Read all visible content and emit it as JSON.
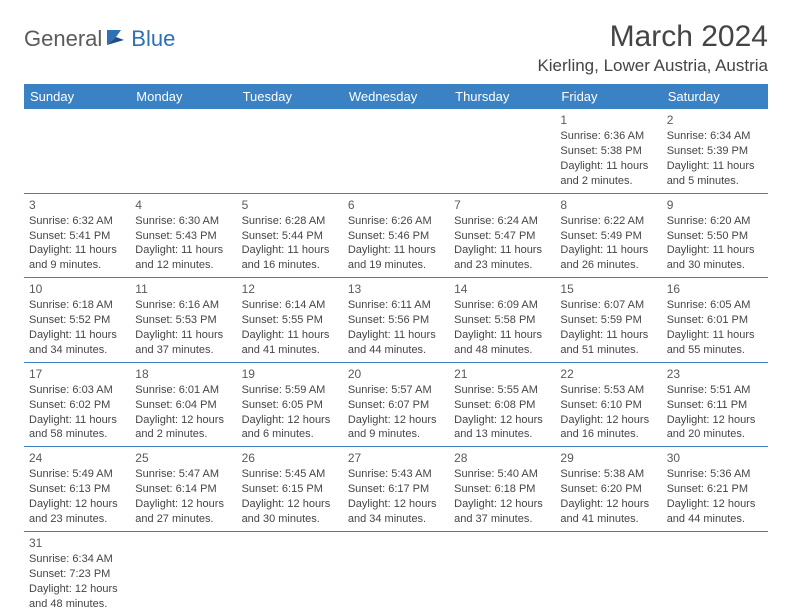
{
  "logo": {
    "general": "General",
    "blue": "Blue"
  },
  "header": {
    "month_title": "March 2024",
    "location": "Kierling, Lower Austria, Austria"
  },
  "colors": {
    "header_bg": "#3a82c4",
    "header_text": "#ffffff",
    "cell_border": "#3a82c4",
    "text": "#454545",
    "logo_gray": "#5b5b5b",
    "logo_blue": "#2f6fb3"
  },
  "daynames": [
    "Sunday",
    "Monday",
    "Tuesday",
    "Wednesday",
    "Thursday",
    "Friday",
    "Saturday"
  ],
  "weeks": [
    [
      null,
      null,
      null,
      null,
      null,
      {
        "n": "1",
        "sr": "Sunrise: 6:36 AM",
        "ss": "Sunset: 5:38 PM",
        "dl1": "Daylight: 11 hours",
        "dl2": "and 2 minutes."
      },
      {
        "n": "2",
        "sr": "Sunrise: 6:34 AM",
        "ss": "Sunset: 5:39 PM",
        "dl1": "Daylight: 11 hours",
        "dl2": "and 5 minutes."
      }
    ],
    [
      {
        "n": "3",
        "sr": "Sunrise: 6:32 AM",
        "ss": "Sunset: 5:41 PM",
        "dl1": "Daylight: 11 hours",
        "dl2": "and 9 minutes."
      },
      {
        "n": "4",
        "sr": "Sunrise: 6:30 AM",
        "ss": "Sunset: 5:43 PM",
        "dl1": "Daylight: 11 hours",
        "dl2": "and 12 minutes."
      },
      {
        "n": "5",
        "sr": "Sunrise: 6:28 AM",
        "ss": "Sunset: 5:44 PM",
        "dl1": "Daylight: 11 hours",
        "dl2": "and 16 minutes."
      },
      {
        "n": "6",
        "sr": "Sunrise: 6:26 AM",
        "ss": "Sunset: 5:46 PM",
        "dl1": "Daylight: 11 hours",
        "dl2": "and 19 minutes."
      },
      {
        "n": "7",
        "sr": "Sunrise: 6:24 AM",
        "ss": "Sunset: 5:47 PM",
        "dl1": "Daylight: 11 hours",
        "dl2": "and 23 minutes."
      },
      {
        "n": "8",
        "sr": "Sunrise: 6:22 AM",
        "ss": "Sunset: 5:49 PM",
        "dl1": "Daylight: 11 hours",
        "dl2": "and 26 minutes."
      },
      {
        "n": "9",
        "sr": "Sunrise: 6:20 AM",
        "ss": "Sunset: 5:50 PM",
        "dl1": "Daylight: 11 hours",
        "dl2": "and 30 minutes."
      }
    ],
    [
      {
        "n": "10",
        "sr": "Sunrise: 6:18 AM",
        "ss": "Sunset: 5:52 PM",
        "dl1": "Daylight: 11 hours",
        "dl2": "and 34 minutes."
      },
      {
        "n": "11",
        "sr": "Sunrise: 6:16 AM",
        "ss": "Sunset: 5:53 PM",
        "dl1": "Daylight: 11 hours",
        "dl2": "and 37 minutes."
      },
      {
        "n": "12",
        "sr": "Sunrise: 6:14 AM",
        "ss": "Sunset: 5:55 PM",
        "dl1": "Daylight: 11 hours",
        "dl2": "and 41 minutes."
      },
      {
        "n": "13",
        "sr": "Sunrise: 6:11 AM",
        "ss": "Sunset: 5:56 PM",
        "dl1": "Daylight: 11 hours",
        "dl2": "and 44 minutes."
      },
      {
        "n": "14",
        "sr": "Sunrise: 6:09 AM",
        "ss": "Sunset: 5:58 PM",
        "dl1": "Daylight: 11 hours",
        "dl2": "and 48 minutes."
      },
      {
        "n": "15",
        "sr": "Sunrise: 6:07 AM",
        "ss": "Sunset: 5:59 PM",
        "dl1": "Daylight: 11 hours",
        "dl2": "and 51 minutes."
      },
      {
        "n": "16",
        "sr": "Sunrise: 6:05 AM",
        "ss": "Sunset: 6:01 PM",
        "dl1": "Daylight: 11 hours",
        "dl2": "and 55 minutes."
      }
    ],
    [
      {
        "n": "17",
        "sr": "Sunrise: 6:03 AM",
        "ss": "Sunset: 6:02 PM",
        "dl1": "Daylight: 11 hours",
        "dl2": "and 58 minutes."
      },
      {
        "n": "18",
        "sr": "Sunrise: 6:01 AM",
        "ss": "Sunset: 6:04 PM",
        "dl1": "Daylight: 12 hours",
        "dl2": "and 2 minutes."
      },
      {
        "n": "19",
        "sr": "Sunrise: 5:59 AM",
        "ss": "Sunset: 6:05 PM",
        "dl1": "Daylight: 12 hours",
        "dl2": "and 6 minutes."
      },
      {
        "n": "20",
        "sr": "Sunrise: 5:57 AM",
        "ss": "Sunset: 6:07 PM",
        "dl1": "Daylight: 12 hours",
        "dl2": "and 9 minutes."
      },
      {
        "n": "21",
        "sr": "Sunrise: 5:55 AM",
        "ss": "Sunset: 6:08 PM",
        "dl1": "Daylight: 12 hours",
        "dl2": "and 13 minutes."
      },
      {
        "n": "22",
        "sr": "Sunrise: 5:53 AM",
        "ss": "Sunset: 6:10 PM",
        "dl1": "Daylight: 12 hours",
        "dl2": "and 16 minutes."
      },
      {
        "n": "23",
        "sr": "Sunrise: 5:51 AM",
        "ss": "Sunset: 6:11 PM",
        "dl1": "Daylight: 12 hours",
        "dl2": "and 20 minutes."
      }
    ],
    [
      {
        "n": "24",
        "sr": "Sunrise: 5:49 AM",
        "ss": "Sunset: 6:13 PM",
        "dl1": "Daylight: 12 hours",
        "dl2": "and 23 minutes."
      },
      {
        "n": "25",
        "sr": "Sunrise: 5:47 AM",
        "ss": "Sunset: 6:14 PM",
        "dl1": "Daylight: 12 hours",
        "dl2": "and 27 minutes."
      },
      {
        "n": "26",
        "sr": "Sunrise: 5:45 AM",
        "ss": "Sunset: 6:15 PM",
        "dl1": "Daylight: 12 hours",
        "dl2": "and 30 minutes."
      },
      {
        "n": "27",
        "sr": "Sunrise: 5:43 AM",
        "ss": "Sunset: 6:17 PM",
        "dl1": "Daylight: 12 hours",
        "dl2": "and 34 minutes."
      },
      {
        "n": "28",
        "sr": "Sunrise: 5:40 AM",
        "ss": "Sunset: 6:18 PM",
        "dl1": "Daylight: 12 hours",
        "dl2": "and 37 minutes."
      },
      {
        "n": "29",
        "sr": "Sunrise: 5:38 AM",
        "ss": "Sunset: 6:20 PM",
        "dl1": "Daylight: 12 hours",
        "dl2": "and 41 minutes."
      },
      {
        "n": "30",
        "sr": "Sunrise: 5:36 AM",
        "ss": "Sunset: 6:21 PM",
        "dl1": "Daylight: 12 hours",
        "dl2": "and 44 minutes."
      }
    ],
    [
      {
        "n": "31",
        "sr": "Sunrise: 6:34 AM",
        "ss": "Sunset: 7:23 PM",
        "dl1": "Daylight: 12 hours",
        "dl2": "and 48 minutes."
      },
      null,
      null,
      null,
      null,
      null,
      null
    ]
  ]
}
